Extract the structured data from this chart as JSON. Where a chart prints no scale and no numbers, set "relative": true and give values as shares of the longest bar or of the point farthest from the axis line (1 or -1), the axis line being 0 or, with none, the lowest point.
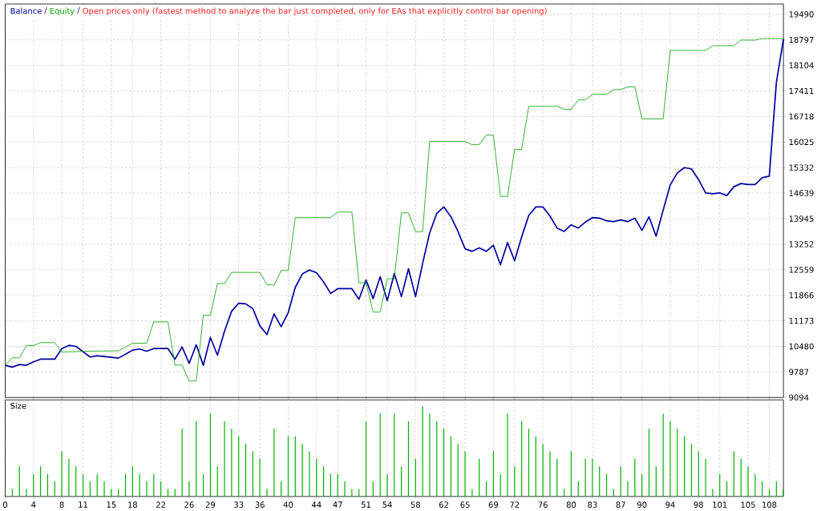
{
  "chart_data": [
    {
      "type": "line",
      "subtitle": "Open prices only (fastest method to analyze the bar just completed, only for EAs that explicitly control bar opening)",
      "xlim": [
        0,
        110
      ],
      "xticks": [
        0,
        4,
        8,
        11,
        15,
        18,
        22,
        26,
        29,
        33,
        36,
        40,
        44,
        47,
        51,
        54,
        58,
        62,
        65,
        69,
        72,
        76,
        80,
        83,
        87,
        90,
        94,
        98,
        101,
        105,
        108
      ],
      "ylim": [
        9094,
        19770
      ],
      "yticks": [
        9094,
        9787,
        10480,
        11173,
        11866,
        12559,
        13252,
        13945,
        14639,
        15332,
        16025,
        16718,
        17411,
        18104,
        18797,
        19490
      ],
      "grid": true,
      "legend": "top left",
      "tick_labels": "y",
      "series": [
        {
          "name": "Balance",
          "color": "#0000a0",
          "x": [
            0,
            1,
            2,
            3,
            4,
            5,
            7,
            8,
            9,
            10,
            11,
            12,
            13,
            14,
            16,
            18,
            19,
            20,
            21,
            23,
            24,
            25,
            26,
            27,
            28,
            29,
            30,
            31,
            32,
            33,
            34,
            35,
            36,
            37,
            38,
            39,
            40,
            41,
            42,
            43,
            44,
            45,
            46,
            47,
            49,
            50,
            51,
            52,
            53,
            54,
            55,
            56,
            57,
            58,
            59,
            60,
            61,
            62,
            63,
            64,
            65,
            66,
            67,
            68,
            69,
            70,
            71,
            72,
            73,
            74,
            75,
            76,
            77,
            78,
            79,
            80,
            81,
            82,
            83,
            84,
            85,
            86,
            87,
            88,
            89,
            90,
            91,
            92,
            93,
            94,
            95,
            96,
            97,
            98,
            99,
            100,
            101,
            102,
            103,
            104,
            105,
            106,
            107,
            108,
            109,
            110
          ],
          "values": [
            9967,
            9917,
            9989,
            9967,
            10062,
            10134,
            10134,
            10422,
            10508,
            10480,
            10335,
            10192,
            10227,
            10205,
            10162,
            10378,
            10409,
            10350,
            10422,
            10422,
            10134,
            10465,
            10019,
            10524,
            9967,
            10725,
            10242,
            10892,
            11433,
            11650,
            11635,
            11505,
            11037,
            10799,
            11362,
            11015,
            11396,
            12083,
            12445,
            12553,
            12479,
            12228,
            11916,
            12046,
            12046,
            11758,
            12284,
            11780,
            12371,
            11721,
            12458,
            11830,
            12588,
            11830,
            12733,
            13562,
            14091,
            14264,
            13996,
            13599,
            13129,
            13058,
            13151,
            13058,
            13225,
            12696,
            13296,
            12804,
            13454,
            14032,
            14264,
            14264,
            14017,
            13692,
            13599,
            13779,
            13692,
            13853,
            13974,
            13961,
            13887,
            13866,
            13909,
            13866,
            13961,
            13627,
            13996,
            13469,
            14178,
            14862,
            15187,
            15332,
            15295,
            15007,
            14645,
            14624,
            14645,
            14574,
            14812,
            14899,
            14871,
            14871,
            15057,
            15100,
            17643,
            18813
          ]
        },
        {
          "name": "Equity",
          "color": "#00a000",
          "x": [
            0,
            1,
            2,
            3,
            4,
            5,
            7,
            8,
            12,
            16,
            18,
            20,
            21,
            23,
            24,
            25,
            26,
            27,
            28,
            29,
            30,
            31,
            32,
            36,
            37,
            38,
            39,
            40,
            41,
            46,
            47,
            49,
            50,
            51,
            52,
            53,
            54,
            55,
            56,
            57,
            58,
            59,
            60,
            65,
            66,
            67,
            68,
            69,
            70,
            71,
            72,
            73,
            74,
            78,
            79,
            80,
            81,
            82,
            83,
            85,
            86,
            87,
            88,
            89,
            90,
            93,
            94,
            99,
            100,
            103,
            104,
            106,
            107,
            110
          ],
          "values": [
            9967,
            10170,
            10170,
            10502,
            10502,
            10582,
            10582,
            10328,
            10350,
            10360,
            10567,
            10567,
            11145,
            11145,
            9975,
            9975,
            9542,
            9542,
            11325,
            11325,
            12185,
            12185,
            12488,
            12488,
            12155,
            12141,
            12538,
            12538,
            13974,
            13974,
            14126,
            14126,
            12206,
            12206,
            11412,
            11412,
            12314,
            12314,
            14103,
            14103,
            13593,
            13593,
            16040,
            16040,
            15954,
            15954,
            16213,
            16213,
            14552,
            14552,
            15824,
            15824,
            16993,
            16993,
            16913,
            16913,
            17167,
            17167,
            17319,
            17319,
            17449,
            17449,
            17520,
            17520,
            16653,
            16653,
            18509,
            18509,
            18639,
            18639,
            18791,
            18791,
            18834,
            18834
          ]
        }
      ]
    },
    {
      "type": "bar",
      "title": "Size",
      "relative": true,
      "color": "#00b000",
      "xlim": [
        0,
        110
      ],
      "xticks": [
        0,
        4,
        8,
        11,
        15,
        18,
        22,
        26,
        29,
        33,
        36,
        40,
        44,
        47,
        51,
        54,
        58,
        62,
        65,
        69,
        72,
        76,
        80,
        83,
        87,
        90,
        94,
        98,
        101,
        105,
        108
      ],
      "grid": "x",
      "tick_labels": "x",
      "x": [
        1,
        2,
        3,
        4,
        5,
        6,
        7,
        8,
        9,
        10,
        11,
        12,
        13,
        14,
        15,
        16,
        17,
        18,
        19,
        20,
        21,
        22,
        23,
        24,
        25,
        26,
        27,
        28,
        29,
        30,
        31,
        32,
        33,
        34,
        35,
        36,
        37,
        38,
        39,
        40,
        41,
        42,
        43,
        44,
        45,
        46,
        47,
        48,
        49,
        50,
        51,
        52,
        53,
        54,
        55,
        56,
        57,
        58,
        59,
        60,
        61,
        62,
        63,
        64,
        65,
        66,
        67,
        68,
        69,
        70,
        71,
        72,
        73,
        74,
        75,
        76,
        77,
        78,
        79,
        80,
        81,
        82,
        83,
        84,
        85,
        86,
        87,
        88,
        89,
        90,
        91,
        92,
        93,
        94,
        95,
        96,
        97,
        98,
        99,
        100,
        101,
        102,
        103,
        104,
        105,
        106,
        107,
        108,
        109,
        110
      ],
      "values": [
        0.083,
        0.333,
        0.083,
        0.25,
        0.333,
        0.25,
        0.167,
        0.5,
        0.417,
        0.333,
        0.25,
        0.167,
        0.25,
        0.167,
        0.083,
        0.083,
        0.25,
        0.333,
        0.25,
        0.167,
        0.25,
        0.167,
        0.083,
        0.083,
        0.75,
        0.167,
        0.833,
        0.25,
        0.917,
        0.333,
        0.833,
        0.75,
        0.667,
        0.583,
        0.5,
        0.417,
        0.083,
        0.75,
        0.167,
        0.667,
        0.667,
        0.583,
        0.5,
        0.417,
        0.333,
        0.25,
        0.25,
        0.167,
        0.083,
        0.083,
        0.833,
        0.167,
        0.917,
        0.25,
        0.917,
        0.333,
        0.833,
        0.417,
        1,
        0.917,
        0.833,
        0.75,
        0.667,
        0.583,
        0.5,
        0.083,
        0.417,
        0.167,
        0.5,
        0.25,
        0.917,
        0.333,
        0.833,
        0.75,
        0.667,
        0.583,
        0.5,
        0.417,
        0.083,
        0.5,
        0.167,
        0.417,
        0.417,
        0.333,
        0.25,
        0.083,
        0.333,
        0.167,
        0.417,
        0.25,
        0.75,
        0.333,
        0.917,
        0.833,
        0.75,
        0.667,
        0.583,
        0.5,
        0.417,
        0.083,
        0.25,
        0.167,
        0.5,
        0.417,
        0.333,
        0.25,
        0.167,
        0.083,
        0.167,
        0.083
      ]
    }
  ]
}
